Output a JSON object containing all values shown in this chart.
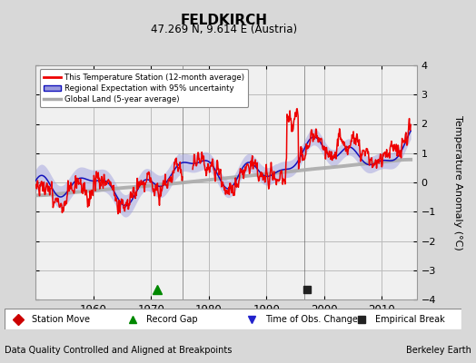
{
  "title": "FELDKIRCH",
  "subtitle": "47.269 N, 9.614 E (Austria)",
  "ylabel": "Temperature Anomaly (°C)",
  "xlabel_footer": "Data Quality Controlled and Aligned at Breakpoints",
  "footer_right": "Berkeley Earth",
  "ylim": [
    -4,
    4
  ],
  "xlim": [
    1950,
    2016
  ],
  "yticks": [
    -4,
    -3,
    -2,
    -1,
    0,
    1,
    2,
    3,
    4
  ],
  "xticks": [
    1960,
    1970,
    1980,
    1990,
    2000,
    2010
  ],
  "bg_color": "#d8d8d8",
  "plot_bg_color": "#f0f0f0",
  "grid_color": "#bbbbbb",
  "red_color": "#ee0000",
  "blue_color": "#1111bb",
  "blue_fill_color": "#9999dd",
  "gray_color": "#aaaaaa",
  "vertical_line_1": 1975.5,
  "vertical_line_2": 1996.5,
  "record_gap_x": 1971,
  "empirical_break_x": 1997,
  "legend_labels": [
    "This Temperature Station (12-month average)",
    "Regional Expectation with 95% uncertainty",
    "Global Land (5-year average)"
  ],
  "marker_labels": [
    "Station Move",
    "Record Gap",
    "Time of Obs. Change",
    "Empirical Break"
  ]
}
